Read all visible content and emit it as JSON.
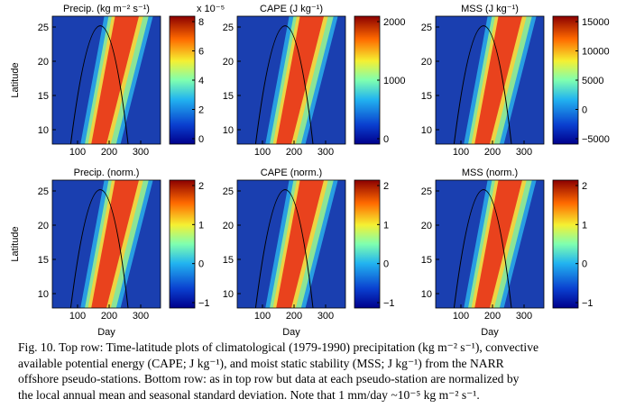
{
  "figure": {
    "panels": [
      {
        "title": "Precip. (kg m⁻² s⁻¹)",
        "row": "top",
        "col": 0,
        "colorbar": {
          "ticks": [
            "8",
            "6",
            "4",
            "2",
            "0"
          ],
          "multiplier": "x 10⁻⁵"
        }
      },
      {
        "title": "CAPE (J kg⁻¹)",
        "row": "top",
        "col": 1,
        "colorbar": {
          "ticks": [
            "2000",
            "1000",
            "0"
          ]
        }
      },
      {
        "title": "MSS (J kg⁻¹)",
        "row": "top",
        "col": 2,
        "colorbar": {
          "ticks": [
            "15000",
            "10000",
            "5000",
            "0",
            "−5000"
          ]
        }
      },
      {
        "title": "Precip. (norm.)",
        "row": "bottom",
        "col": 0,
        "colorbar": {
          "ticks": [
            "2",
            "1",
            "0",
            "−1"
          ]
        }
      },
      {
        "title": "CAPE (norm.)",
        "row": "bottom",
        "col": 1,
        "colorbar": {
          "ticks": [
            "2",
            "1",
            "0",
            "−1"
          ]
        }
      },
      {
        "title": "MSS (norm.)",
        "row": "bottom",
        "col": 2,
        "colorbar": {
          "ticks": [
            "2",
            "1",
            "0",
            "−1"
          ]
        }
      }
    ],
    "y_ticks": [
      "25",
      "20",
      "15",
      "10"
    ],
    "x_ticks": [
      "100",
      "200",
      "300"
    ],
    "ylabel": "Latitude",
    "xlabel": "Day"
  },
  "caption": {
    "lines": [
      "Fig. 10. Top row: Time-latitude plots of climatological (1979-1990) precipitation (kg m⁻² s⁻¹), convective",
      "available potential energy (CAPE; J kg⁻¹), and moist static stability (MSS; J kg⁻¹) from the NARR",
      "offshore pseudo-stations. Bottom row: as in top row but data at each pseudo-station are normalized by",
      "the local annual mean and seasonal standard deviation. Note that 1 mm/day ~10⁻⁵ kg m⁻² s⁻¹."
    ]
  },
  "colors": {
    "high": "#8b0000",
    "low": "#00008b"
  }
}
